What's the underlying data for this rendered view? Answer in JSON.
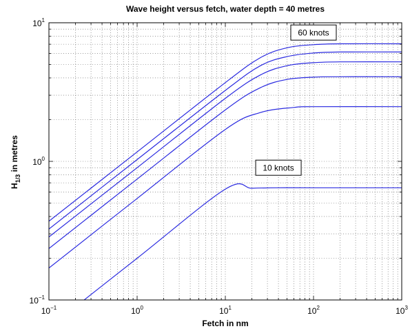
{
  "chart_data": {
    "type": "line",
    "title": "Wave height versus fetch, water depth = 40 metres",
    "xlabel": "Fetch in nm",
    "ylabel": {
      "base": "H",
      "subscript": "1/3",
      "rest": " in metres"
    },
    "x_scale": "log",
    "y_scale": "log",
    "xlim": [
      0.1,
      1000
    ],
    "ylim": [
      0.1,
      10
    ],
    "grid": true,
    "xticks": [
      {
        "value": 0.1,
        "base": "10",
        "exp": "−1"
      },
      {
        "value": 1,
        "base": "10",
        "exp": "0"
      },
      {
        "value": 10,
        "base": "10",
        "exp": "1"
      },
      {
        "value": 100,
        "base": "10",
        "exp": "2"
      },
      {
        "value": 1000,
        "base": "10",
        "exp": "3"
      }
    ],
    "yticks": [
      {
        "value": 0.1,
        "base": "10",
        "exp": "−1"
      },
      {
        "value": 1,
        "base": "10",
        "exp": "0"
      },
      {
        "value": 10,
        "base": "10",
        "exp": "1"
      }
    ],
    "line_color": "#2a2ae0",
    "series": [
      {
        "points": [
          [
            0.1,
            0.063
          ],
          [
            1,
            0.2
          ],
          [
            10,
            0.63
          ],
          [
            20,
            0.64
          ],
          [
            40,
            0.645
          ],
          [
            100,
            0.645
          ],
          [
            1000,
            0.645
          ]
        ]
      },
      {
        "points": [
          [
            0.1,
            0.17
          ],
          [
            1,
            0.54
          ],
          [
            10,
            1.7
          ],
          [
            25,
            2.25
          ],
          [
            60,
            2.45
          ],
          [
            100,
            2.48
          ],
          [
            1000,
            2.48
          ]
        ]
      },
      {
        "points": [
          [
            0.1,
            0.235
          ],
          [
            1,
            0.745
          ],
          [
            10,
            2.35
          ],
          [
            25,
            3.4
          ],
          [
            50,
            3.9
          ],
          [
            100,
            4.05
          ],
          [
            200,
            4.08
          ],
          [
            1000,
            4.08
          ]
        ]
      },
      {
        "points": [
          [
            0.1,
            0.285
          ],
          [
            1,
            0.9
          ],
          [
            10,
            2.85
          ],
          [
            25,
            4.2
          ],
          [
            50,
            4.9
          ],
          [
            100,
            5.15
          ],
          [
            200,
            5.22
          ],
          [
            1000,
            5.22
          ]
        ]
      },
      {
        "points": [
          [
            0.1,
            0.325
          ],
          [
            1,
            1.03
          ],
          [
            10,
            3.25
          ],
          [
            25,
            4.9
          ],
          [
            50,
            5.7
          ],
          [
            100,
            6.05
          ],
          [
            200,
            6.15
          ],
          [
            1000,
            6.15
          ]
        ]
      },
      {
        "points": [
          [
            0.1,
            0.37
          ],
          [
            1,
            1.17
          ],
          [
            10,
            3.7
          ],
          [
            25,
            5.6
          ],
          [
            50,
            6.6
          ],
          [
            100,
            6.95
          ],
          [
            200,
            7.05
          ],
          [
            1000,
            7.05
          ]
        ]
      }
    ],
    "annotations": [
      {
        "text": "60 knots",
        "x": 100,
        "y": 8.5
      },
      {
        "text": "10 knots",
        "x": 40,
        "y": 0.9
      }
    ]
  }
}
